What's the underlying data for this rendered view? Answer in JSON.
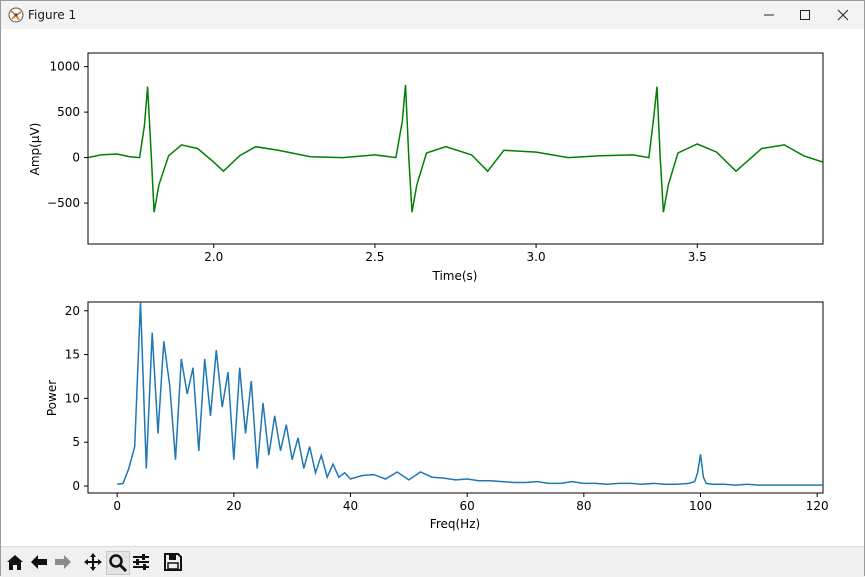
{
  "window": {
    "title": "Figure 1"
  },
  "icons": {
    "app": "matplotlib-figure-icon",
    "minimize": "minimize-icon",
    "maximize": "maximize-icon",
    "close": "close-icon"
  },
  "toolbar": {
    "buttons": [
      "home-icon",
      "back-arrow-icon",
      "forward-arrow-icon",
      "pan-move-icon",
      "zoom-magnifier-icon",
      "configure-subplots-icon",
      "save-disk-icon"
    ]
  },
  "colors": {
    "ecg_line": "#008000",
    "psd_line": "#1f77b4"
  },
  "chart_data": [
    {
      "type": "line",
      "title": "",
      "xlabel": "Time(s)",
      "ylabel": "Amp(µV)",
      "xlim": [
        1.61,
        3.89
      ],
      "ylim": [
        -950,
        1150
      ],
      "xticks": [
        2.0,
        2.5,
        3.0,
        3.5
      ],
      "xtick_labels": [
        "2.0",
        "2.5",
        "3.0",
        "3.5"
      ],
      "yticks": [
        1000,
        500,
        0,
        -500
      ],
      "ytick_labels": [
        "1000",
        "500",
        "0",
        "−500"
      ],
      "grid": false,
      "series": [
        {
          "x": [
            1.61,
            1.65,
            1.7,
            1.74,
            1.77,
            1.785,
            1.795,
            1.805,
            1.815,
            1.83,
            1.86,
            1.9,
            1.95,
            2.0,
            2.03,
            2.08,
            2.13,
            2.2,
            2.3,
            2.4,
            2.5,
            2.565,
            2.585,
            2.595,
            2.605,
            2.615,
            2.63,
            2.66,
            2.72,
            2.8,
            2.85,
            2.9,
            3.0,
            3.1,
            3.2,
            3.3,
            3.35,
            3.365,
            3.375,
            3.385,
            3.395,
            3.41,
            3.44,
            3.5,
            3.56,
            3.62,
            3.7,
            3.77,
            3.83,
            3.89
          ],
          "y": [
            0,
            30,
            40,
            10,
            0,
            350,
            780,
            100,
            -600,
            -300,
            20,
            140,
            100,
            -50,
            -150,
            20,
            120,
            80,
            10,
            0,
            30,
            0,
            400,
            800,
            0,
            -600,
            -300,
            50,
            120,
            30,
            -150,
            80,
            60,
            0,
            20,
            30,
            0,
            450,
            780,
            0,
            -600,
            -300,
            50,
            150,
            60,
            -150,
            100,
            140,
            20,
            -50
          ]
        }
      ]
    },
    {
      "type": "line",
      "title": "",
      "xlabel": "Freq(Hz)",
      "ylabel": "Power",
      "xlim": [
        -5,
        121
      ],
      "ylim": [
        -0.8,
        21
      ],
      "xticks": [
        0,
        20,
        40,
        60,
        80,
        100,
        120
      ],
      "xtick_labels": [
        "0",
        "20",
        "40",
        "60",
        "80",
        "100",
        "120"
      ],
      "yticks": [
        20,
        15,
        10,
        5,
        0
      ],
      "ytick_labels": [
        "20",
        "15",
        "10",
        "5",
        "0"
      ],
      "grid": false,
      "series": [
        {
          "x": [
            0,
            1,
            2,
            3,
            4,
            5,
            6,
            7,
            8,
            9,
            10,
            11,
            12,
            13,
            14,
            15,
            16,
            17,
            18,
            19,
            20,
            21,
            22,
            23,
            24,
            25,
            26,
            27,
            28,
            29,
            30,
            31,
            32,
            33,
            34,
            35,
            36,
            37,
            38,
            39,
            40,
            42,
            44,
            46,
            48,
            50,
            52,
            54,
            56,
            58,
            60,
            62,
            64,
            66,
            68,
            70,
            72,
            74,
            76,
            78,
            80,
            82,
            84,
            86,
            88,
            90,
            92,
            94,
            96,
            98,
            99,
            99.5,
            100,
            100.5,
            101,
            102,
            104,
            106,
            108,
            110,
            112,
            114,
            116,
            118,
            120,
            121
          ],
          "y": [
            0.2,
            0.3,
            2.0,
            4.5,
            21,
            2.0,
            17.5,
            6.0,
            16.5,
            11.5,
            3.0,
            14.5,
            10.5,
            13.5,
            4.0,
            14.5,
            8.0,
            15.5,
            9.0,
            13.0,
            3.0,
            13.5,
            6.0,
            12.0,
            2.0,
            9.5,
            3.5,
            8.0,
            4.0,
            7.0,
            3.0,
            5.5,
            2.0,
            4.5,
            1.5,
            3.5,
            1.0,
            2.5,
            1.0,
            1.5,
            0.8,
            1.2,
            1.3,
            0.8,
            1.6,
            0.7,
            1.6,
            1.0,
            0.9,
            0.7,
            0.8,
            0.6,
            0.6,
            0.5,
            0.4,
            0.4,
            0.5,
            0.3,
            0.3,
            0.5,
            0.3,
            0.3,
            0.2,
            0.3,
            0.3,
            0.2,
            0.3,
            0.2,
            0.2,
            0.3,
            0.5,
            1.5,
            3.6,
            1.0,
            0.3,
            0.2,
            0.2,
            0.1,
            0.2,
            0.1,
            0.1,
            0.1,
            0.1,
            0.1,
            0.1,
            0.1
          ]
        }
      ]
    }
  ]
}
